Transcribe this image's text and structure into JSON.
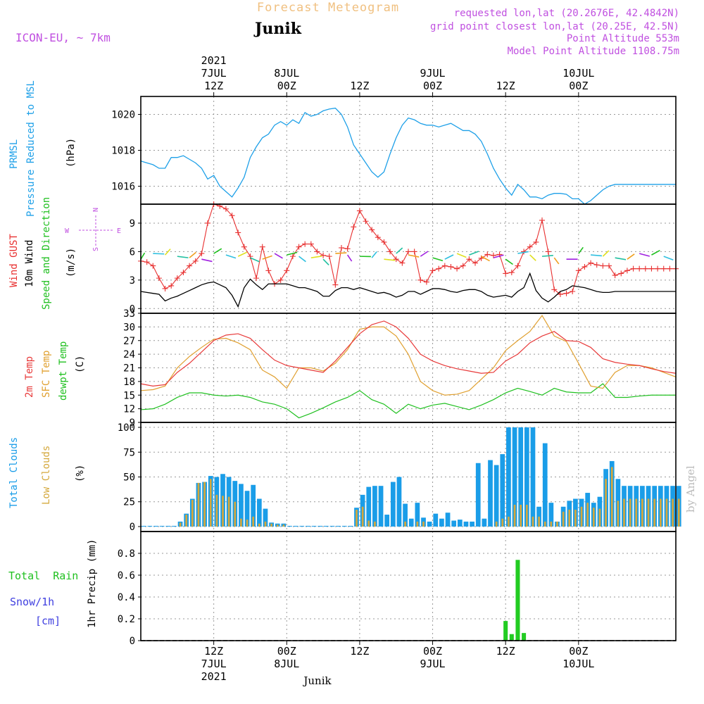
{
  "header": {
    "title": "Forecast Meteogram",
    "location": "Junik",
    "model": "ICON-EU, ~ 7km",
    "requested": "requested lon,lat (20.2676E, 42.4842N)",
    "grid_point": "grid point closest lon,lat (20.25E, 42.5N)",
    "point_alt": "Point Altitude 553m",
    "model_alt": "Model Point Altitude 1108.75m",
    "footer_location": "Junik",
    "credit": "by Angel"
  },
  "time_axis": {
    "start_hour": 0,
    "end_hour": 88,
    "top_labels": [
      {
        "hour": 12,
        "lines": [
          "2021",
          "7JUL",
          "12Z"
        ]
      },
      {
        "hour": 24,
        "lines": [
          "8JUL",
          "00Z"
        ]
      },
      {
        "hour": 36,
        "lines": [
          "12Z"
        ]
      },
      {
        "hour": 48,
        "lines": [
          "9JUL",
          "00Z"
        ]
      },
      {
        "hour": 60,
        "lines": [
          "12Z"
        ]
      },
      {
        "hour": 72,
        "lines": [
          "10JUL",
          "00Z"
        ]
      }
    ],
    "bottom_labels": [
      {
        "hour": 12,
        "lines": [
          "12Z",
          "7JUL",
          "2021"
        ]
      },
      {
        "hour": 24,
        "lines": [
          "00Z",
          "8JUL"
        ]
      },
      {
        "hour": 36,
        "lines": [
          "12Z"
        ]
      },
      {
        "hour": 48,
        "lines": [
          "00Z",
          "9JUL"
        ]
      },
      {
        "hour": 60,
        "lines": [
          "12Z"
        ]
      },
      {
        "hour": 72,
        "lines": [
          "00Z",
          "10JUL"
        ]
      }
    ]
  },
  "panel_labels": {
    "pressure": {
      "l1": "PRMSL",
      "l2": "Pressure Reduced to MSL",
      "unit": "(hPa)"
    },
    "wind": {
      "gust": "Wind GUST",
      "wind": "10m Wind",
      "speed": "Speed and Direction",
      "unit": "(m/s)",
      "compass_n": "N",
      "compass_s": "S",
      "compass_w": "W",
      "compass_e": "E"
    },
    "temp": {
      "t2m": "2m Temp",
      "sfc": "SFC Temp",
      "dew": "dewpt Temp",
      "unit": "(C)"
    },
    "cloud": {
      "total": "Total Clouds",
      "low": "Low Clouds",
      "unit": "(%)"
    },
    "precip": {
      "rain": "Total  Rain",
      "snow": "Snow/1h",
      "cm": "[cm]",
      "unit": "1hr Precip (mm)"
    }
  },
  "colors": {
    "pressure": "#1ea0e8",
    "gust": "#e83030",
    "wind": "#000000",
    "temp2m": "#e83a3a",
    "sfc": "#e0a030",
    "dew": "#20c020",
    "total_cloud": "#1a9de8",
    "low_cloud": "#d4a83c",
    "precip": "#22cc22",
    "purple_text": "#c050e0",
    "title": "#f0c080"
  },
  "chart_data": [
    {
      "type": "line",
      "name": "pressure",
      "ylim": [
        1015,
        1021
      ],
      "yticks": [
        1016,
        1018,
        1020
      ],
      "x": [
        0,
        1,
        2,
        3,
        4,
        5,
        6,
        7,
        8,
        9,
        10,
        11,
        12,
        13,
        14,
        15,
        16,
        17,
        18,
        19,
        20,
        21,
        22,
        23,
        24,
        25,
        26,
        27,
        28,
        29,
        30,
        31,
        32,
        33,
        34,
        35,
        36,
        37,
        38,
        39,
        40,
        41,
        42,
        43,
        44,
        45,
        46,
        47,
        48,
        49,
        50,
        51,
        52,
        53,
        54,
        55,
        56,
        57,
        58,
        59,
        60,
        61,
        62,
        63,
        64,
        65,
        66,
        67,
        68,
        69,
        70,
        71,
        72,
        73,
        74,
        75,
        76,
        77,
        78,
        79,
        80,
        81,
        82,
        83,
        84,
        85,
        86,
        87,
        88
      ],
      "y": [
        1017.4,
        1017.3,
        1017.2,
        1017.0,
        1017.0,
        1017.6,
        1017.6,
        1017.7,
        1017.5,
        1017.3,
        1017.0,
        1016.4,
        1016.6,
        1016.0,
        1015.7,
        1015.4,
        1015.9,
        1016.5,
        1017.6,
        1018.2,
        1018.7,
        1018.9,
        1019.4,
        1019.6,
        1019.4,
        1019.7,
        1019.5,
        1020.1,
        1019.9,
        1020.0,
        1020.2,
        1020.3,
        1020.35,
        1020.0,
        1019.3,
        1018.3,
        1017.8,
        1017.3,
        1016.8,
        1016.5,
        1016.8,
        1017.8,
        1018.7,
        1019.4,
        1019.8,
        1019.7,
        1019.5,
        1019.4,
        1019.4,
        1019.3,
        1019.4,
        1019.5,
        1019.3,
        1019.1,
        1019.1,
        1018.9,
        1018.5,
        1017.8,
        1017.0,
        1016.4,
        1015.9,
        1015.5,
        1016.1,
        1015.8,
        1015.4,
        1015.4,
        1015.3,
        1015.5,
        1015.6,
        1015.6,
        1015.55,
        1015.3,
        1015.3,
        1015.0,
        1015.2,
        1015.5,
        1015.8,
        1016.0,
        1016.1,
        1016.1,
        1016.1,
        1016.1,
        1016.1,
        1016.1,
        1016.1,
        1016.1,
        1016.1,
        1016.1,
        1016.1
      ]
    },
    {
      "type": "line",
      "name": "wind",
      "ylim": [
        -0.5,
        11
      ],
      "yticks": [
        0,
        3,
        6,
        9
      ],
      "x": [
        0,
        1,
        2,
        3,
        4,
        5,
        6,
        7,
        8,
        9,
        10,
        11,
        12,
        13,
        14,
        15,
        16,
        17,
        18,
        19,
        20,
        21,
        22,
        23,
        24,
        25,
        26,
        27,
        28,
        29,
        30,
        31,
        32,
        33,
        34,
        35,
        36,
        37,
        38,
        39,
        40,
        41,
        42,
        43,
        44,
        45,
        46,
        47,
        48,
        49,
        50,
        51,
        52,
        53,
        54,
        55,
        56,
        57,
        58,
        59,
        60,
        61,
        62,
        63,
        64,
        65,
        66,
        67,
        68,
        69,
        70,
        71,
        72,
        73,
        74,
        75,
        76,
        77,
        78,
        79,
        80,
        81,
        82,
        83,
        84,
        85,
        86,
        87,
        88
      ],
      "gust": [
        5.0,
        4.9,
        4.5,
        3.2,
        2.1,
        2.4,
        3.2,
        3.8,
        4.5,
        5.0,
        5.8,
        9.0,
        11.0,
        10.8,
        10.5,
        9.8,
        8.0,
        6.5,
        5.5,
        3.2,
        6.5,
        4.0,
        2.6,
        3.0,
        4.0,
        5.5,
        6.5,
        6.8,
        6.8,
        6.0,
        5.6,
        5.5,
        2.5,
        6.4,
        6.3,
        8.6,
        10.3,
        9.2,
        8.3,
        7.5,
        7.0,
        6.0,
        5.2,
        4.8,
        6.0,
        6.0,
        3.0,
        2.8,
        4.0,
        4.2,
        4.5,
        4.4,
        4.2,
        4.5,
        5.2,
        4.8,
        5.3,
        5.7,
        5.6,
        5.7,
        3.7,
        3.8,
        4.5,
        6.0,
        6.5,
        7.0,
        9.3,
        6.0,
        2.0,
        1.5,
        1.6,
        1.8,
        4.0,
        4.4,
        4.8,
        4.6,
        4.5,
        4.5,
        3.5,
        3.7,
        4.0,
        4.2,
        4.2,
        4.2,
        4.2,
        4.2,
        4.2,
        4.2,
        4.2
      ],
      "speed": [
        1.8,
        1.7,
        1.6,
        1.5,
        0.8,
        1.1,
        1.3,
        1.6,
        1.9,
        2.2,
        2.5,
        2.7,
        2.8,
        2.5,
        2.2,
        1.4,
        0.2,
        2.2,
        3.1,
        2.5,
        2.0,
        2.6,
        2.6,
        2.6,
        2.6,
        2.4,
        2.2,
        2.2,
        2.0,
        1.8,
        1.3,
        1.3,
        1.9,
        2.2,
        2.2,
        2.0,
        2.2,
        2.0,
        1.8,
        1.6,
        1.7,
        1.5,
        1.2,
        1.4,
        1.8,
        1.8,
        1.5,
        1.8,
        2.1,
        2.1,
        2.0,
        1.8,
        1.7,
        1.9,
        2.0,
        2.0,
        1.8,
        1.4,
        1.2,
        1.3,
        1.4,
        1.2,
        1.8,
        2.2,
        3.7,
        1.9,
        1.1,
        0.7,
        1.2,
        1.8,
        2.0,
        2.4,
        2.3,
        2.2,
        2.0,
        1.8,
        1.7,
        1.7,
        1.8,
        1.8,
        1.8,
        1.8,
        1.8,
        1.8,
        1.8,
        1.8,
        1.8,
        1.8,
        1.8
      ]
    },
    {
      "type": "line",
      "name": "temperature",
      "ylim": [
        9,
        33
      ],
      "yticks": [
        9,
        12,
        15,
        18,
        21,
        24,
        27,
        30,
        33
      ],
      "x": [
        0,
        2,
        4,
        6,
        8,
        10,
        12,
        14,
        16,
        18,
        20,
        22,
        24,
        26,
        28,
        30,
        32,
        34,
        36,
        38,
        40,
        42,
        44,
        46,
        48,
        50,
        52,
        54,
        56,
        58,
        60,
        62,
        64,
        66,
        68,
        70,
        72,
        74,
        76,
        78,
        80,
        82,
        84,
        86,
        88
      ],
      "t2m": [
        17.5,
        17.0,
        17.3,
        20.0,
        22.0,
        24.5,
        27.0,
        28.2,
        28.5,
        27.5,
        25.0,
        22.7,
        21.5,
        21.0,
        20.5,
        20.0,
        22.5,
        25.5,
        28.5,
        30.5,
        31.3,
        30.0,
        27.5,
        24.0,
        22.5,
        21.5,
        20.8,
        20.3,
        19.8,
        20.0,
        22.5,
        24.0,
        26.5,
        28.0,
        29.0,
        27.0,
        26.8,
        25.5,
        23.0,
        22.2,
        21.8,
        21.5,
        20.8,
        20.2,
        19.8
      ],
      "sfc": [
        16.0,
        16.2,
        17.0,
        21.0,
        23.5,
        25.5,
        27.3,
        27.5,
        26.5,
        25.0,
        20.5,
        19.0,
        16.5,
        21.0,
        21.0,
        20.3,
        22.0,
        25.0,
        29.5,
        30.0,
        30.0,
        28.0,
        24.0,
        18.0,
        16.0,
        15.0,
        15.2,
        16.0,
        18.5,
        21.0,
        24.8,
        27.0,
        29.0,
        32.5,
        28.0,
        26.8,
        22.0,
        17.0,
        16.5,
        20.0,
        21.5,
        21.5,
        21.0,
        20.0,
        19.0
      ],
      "dew": [
        11.8,
        12.0,
        13.0,
        14.5,
        15.5,
        15.5,
        15.0,
        14.8,
        15.0,
        14.5,
        13.5,
        13.0,
        12.0,
        10.0,
        11.0,
        12.2,
        13.5,
        14.5,
        16.0,
        14.0,
        13.0,
        11.0,
        13.0,
        12.0,
        12.8,
        13.2,
        12.5,
        11.8,
        12.8,
        14.0,
        15.5,
        16.5,
        15.8,
        15.0,
        16.5,
        15.7,
        15.5,
        15.5,
        17.5,
        14.5,
        14.5,
        14.8,
        15.0,
        15.0,
        15.0
      ]
    },
    {
      "type": "bar",
      "name": "clouds",
      "ylim": [
        -5,
        105
      ],
      "yticks": [
        0,
        25,
        50,
        75,
        100
      ],
      "x": [
        0,
        1,
        2,
        3,
        4,
        5,
        6,
        7,
        8,
        9,
        10,
        11,
        12,
        13,
        14,
        15,
        16,
        17,
        18,
        19,
        20,
        21,
        22,
        23,
        24,
        25,
        26,
        27,
        28,
        29,
        30,
        31,
        32,
        33,
        34,
        35,
        36,
        37,
        38,
        39,
        40,
        41,
        42,
        43,
        44,
        45,
        46,
        47,
        48,
        49,
        50,
        51,
        52,
        53,
        54,
        55,
        56,
        57,
        58,
        59,
        60,
        61,
        62,
        63,
        64,
        65,
        66,
        67,
        68,
        69,
        70,
        71,
        72,
        73,
        74,
        75,
        76,
        77,
        78,
        79,
        80,
        81,
        82,
        83,
        84,
        85,
        86,
        87,
        88
      ],
      "total": [
        0,
        0,
        0,
        0,
        0,
        0,
        5,
        13,
        28,
        44,
        45,
        51,
        50,
        53,
        50,
        46,
        43,
        36,
        42,
        28,
        18,
        4,
        3,
        3,
        0,
        0,
        0,
        0,
        0,
        0,
        0,
        0,
        0,
        0,
        0,
        19,
        32,
        40,
        41,
        41,
        12,
        45,
        50,
        23,
        8,
        24,
        9,
        5,
        13,
        8,
        14,
        6,
        7,
        5,
        5,
        64,
        8,
        67,
        62,
        73,
        100,
        100,
        100,
        100,
        100,
        20,
        84,
        24,
        5,
        20,
        26,
        28,
        28,
        34,
        24,
        30,
        58,
        66,
        48,
        41,
        41,
        41,
        41,
        41,
        41,
        41,
        41,
        41,
        41
      ],
      "low": [
        0,
        0,
        0,
        0,
        0,
        0,
        4,
        12,
        27,
        44,
        45,
        48,
        32,
        31,
        30,
        25,
        8,
        7,
        10,
        3,
        5,
        3,
        2,
        2,
        0,
        0,
        0,
        0,
        0,
        0,
        0,
        0,
        0,
        0,
        0,
        17,
        20,
        6,
        5,
        0,
        0,
        0,
        0,
        5,
        0,
        5,
        5,
        0,
        0,
        0,
        0,
        0,
        0,
        0,
        0,
        0,
        0,
        0,
        5,
        8,
        10,
        22,
        22,
        22,
        10,
        10,
        5,
        5,
        5,
        15,
        17,
        17,
        20,
        24,
        19,
        18,
        48,
        60,
        26,
        28,
        28,
        28,
        28,
        28,
        28,
        28,
        28,
        28,
        28
      ]
    },
    {
      "type": "bar",
      "name": "precip",
      "ylim": [
        0,
        1.0
      ],
      "yticks": [
        0,
        0.2,
        0.4,
        0.6,
        0.8
      ],
      "x": [
        60,
        61,
        62,
        63
      ],
      "rain": [
        0.18,
        0.06,
        0.74,
        0.07
      ]
    }
  ]
}
